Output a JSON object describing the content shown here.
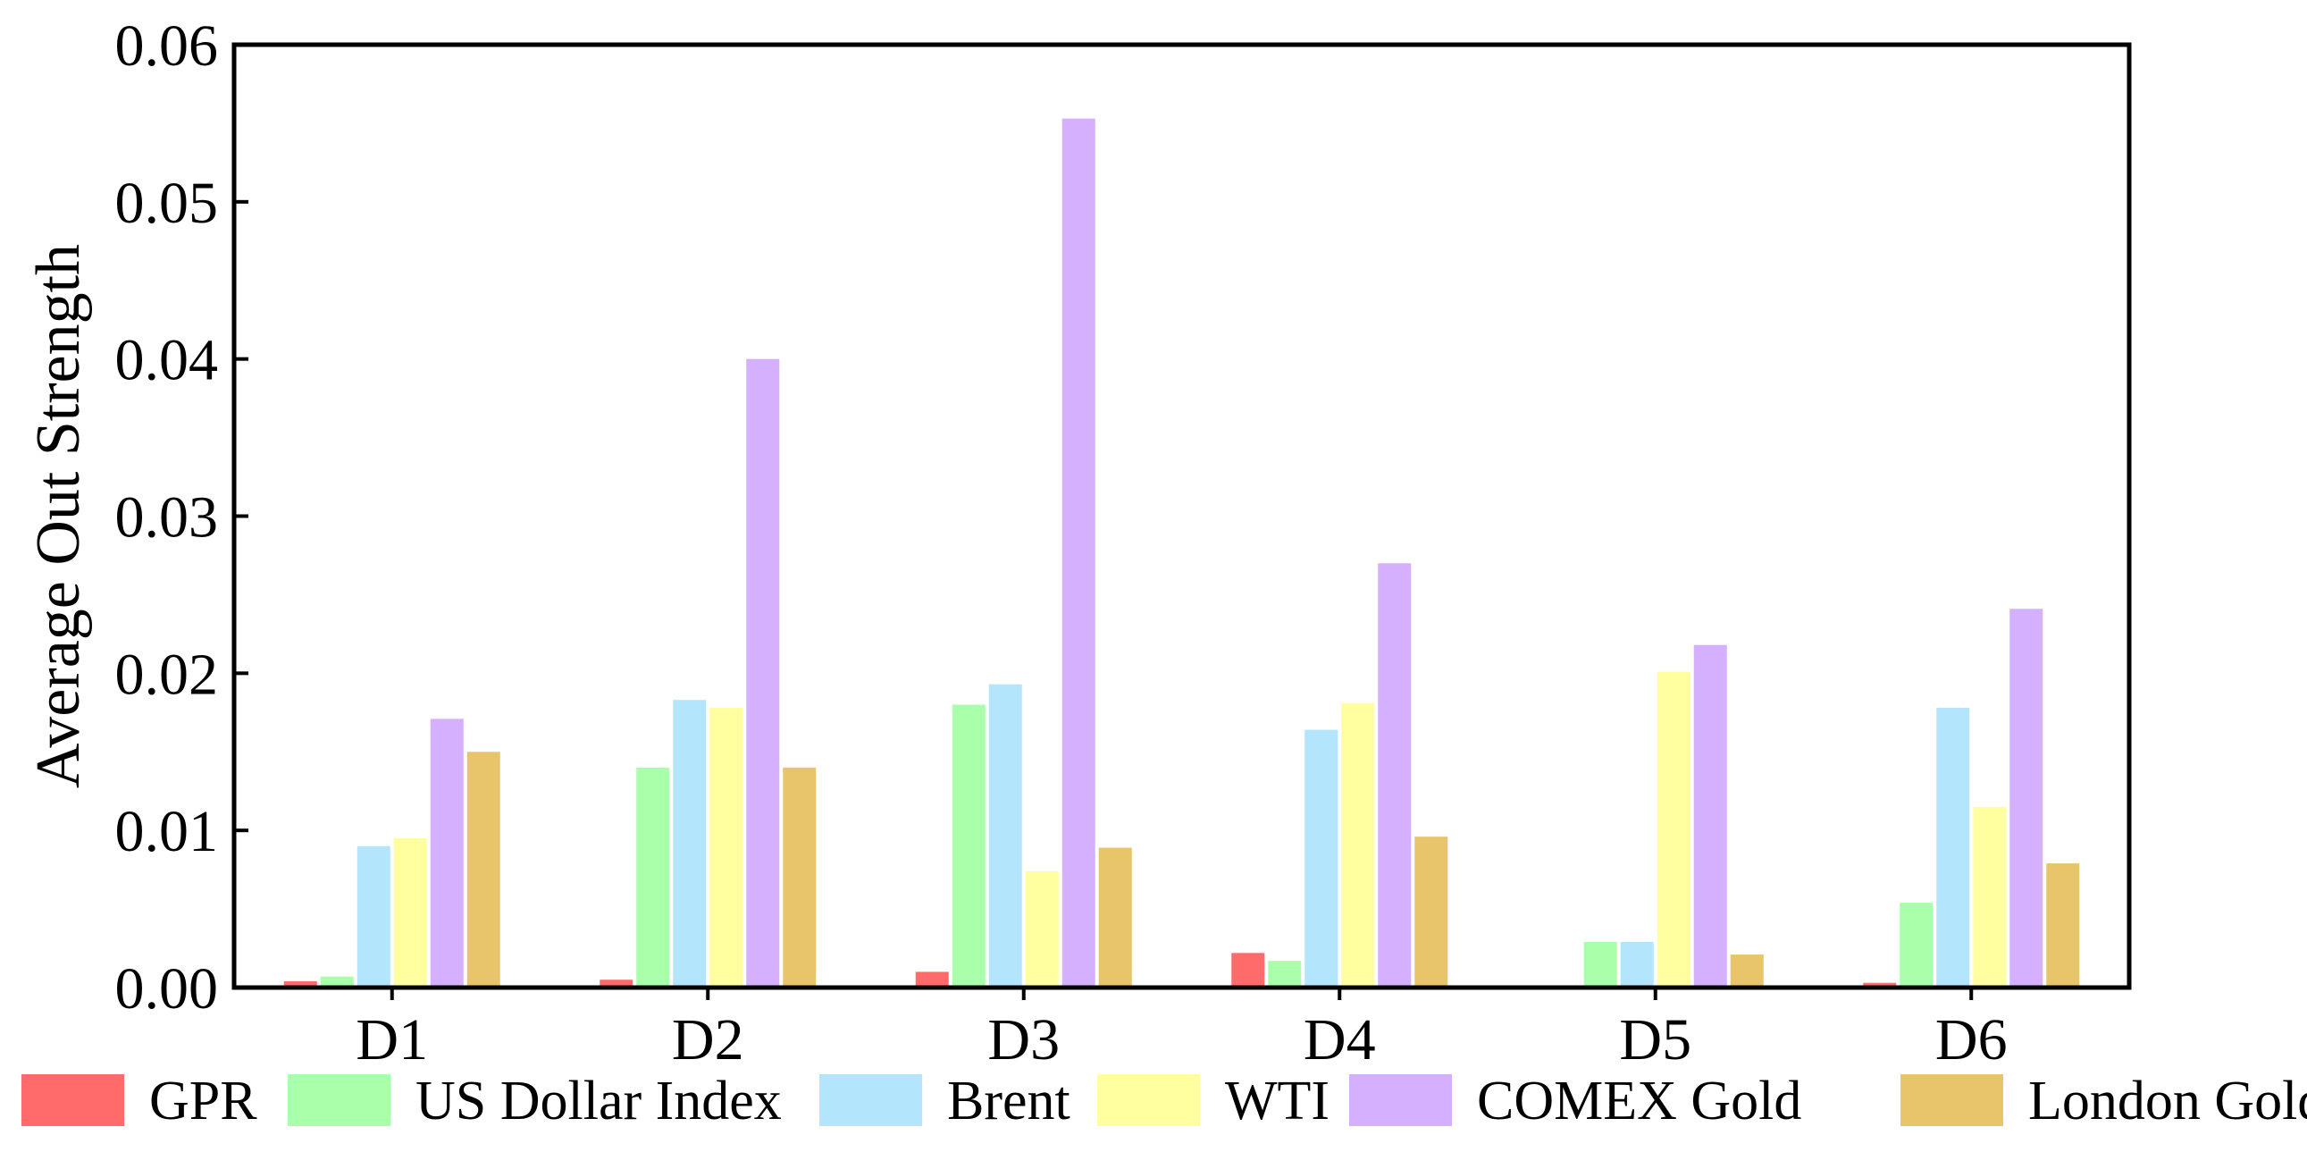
{
  "chart_data": {
    "type": "bar",
    "title": "",
    "xlabel": "",
    "ylabel": "Average Out Strength",
    "ylim": [
      0,
      0.06
    ],
    "yticks": [
      "0.00",
      "0.01",
      "0.02",
      "0.03",
      "0.04",
      "0.05",
      "0.06"
    ],
    "ytick_values": [
      0,
      0.01,
      0.02,
      0.03,
      0.04,
      0.05,
      0.06
    ],
    "grid": false,
    "legend_position": "bottom",
    "categories": [
      "D1",
      "D2",
      "D3",
      "D4",
      "D5",
      "D6"
    ],
    "series": [
      {
        "name": "GPR",
        "color": "#ff6b6b",
        "values": [
          0.0004,
          0.0005,
          0.001,
          0.0022,
          0.0,
          0.0003
        ]
      },
      {
        "name": "US Dollar Index",
        "color": "#aaffaa",
        "values": [
          0.0007,
          0.014,
          0.018,
          0.0017,
          0.0029,
          0.0054
        ]
      },
      {
        "name": "Brent",
        "color": "#b3e5fc",
        "values": [
          0.009,
          0.0183,
          0.0193,
          0.0164,
          0.0029,
          0.0178
        ]
      },
      {
        "name": "WTI",
        "color": "#ffffa0",
        "values": [
          0.0095,
          0.0178,
          0.0074,
          0.0181,
          0.0201,
          0.0115
        ]
      },
      {
        "name": "COMEX Gold",
        "color": "#d5b0ff",
        "values": [
          0.0171,
          0.04,
          0.0553,
          0.027,
          0.0218,
          0.0241
        ]
      },
      {
        "name": "London Gold",
        "color": "#e8c46a",
        "values": [
          0.015,
          0.014,
          0.0089,
          0.0096,
          0.0021,
          0.0079
        ]
      }
    ]
  }
}
